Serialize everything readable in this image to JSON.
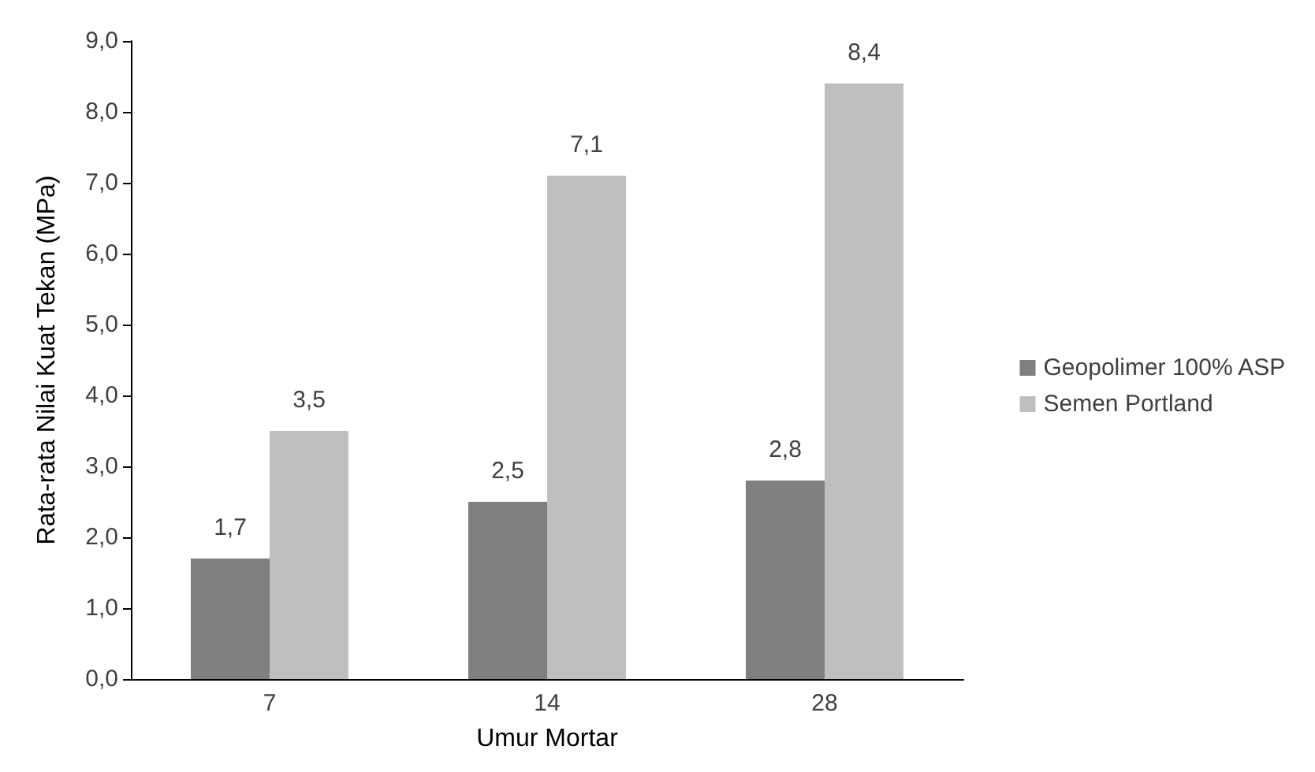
{
  "chart_data": {
    "type": "bar",
    "xlabel": "Umur Mortar",
    "ylabel": "Rata-rata Nilai Kuat Tekan (MPa)",
    "categories": [
      "7",
      "14",
      "28"
    ],
    "series": [
      {
        "name": "Geopolimer 100% ASP",
        "color": "#7f7f7f",
        "values": [
          1.7,
          2.5,
          2.8
        ],
        "value_labels": [
          "1,7",
          "2,5",
          "2,8"
        ]
      },
      {
        "name": "Semen Portland",
        "color": "#bfbfbf",
        "values": [
          3.5,
          7.1,
          8.4
        ],
        "value_labels": [
          "3,5",
          "7,1",
          "8,4"
        ]
      }
    ],
    "ylim": [
      0,
      9
    ],
    "yticks": [
      {
        "value": 0,
        "label": "0,0"
      },
      {
        "value": 1,
        "label": "1,0"
      },
      {
        "value": 2,
        "label": "2,0"
      },
      {
        "value": 3,
        "label": "3,0"
      },
      {
        "value": 4,
        "label": "4,0"
      },
      {
        "value": 5,
        "label": "5,0"
      },
      {
        "value": 6,
        "label": "6,0"
      },
      {
        "value": 7,
        "label": "7,0"
      },
      {
        "value": 8,
        "label": "8,0"
      },
      {
        "value": 9,
        "label": "9,0"
      }
    ],
    "grid": false,
    "legend": "right"
  }
}
